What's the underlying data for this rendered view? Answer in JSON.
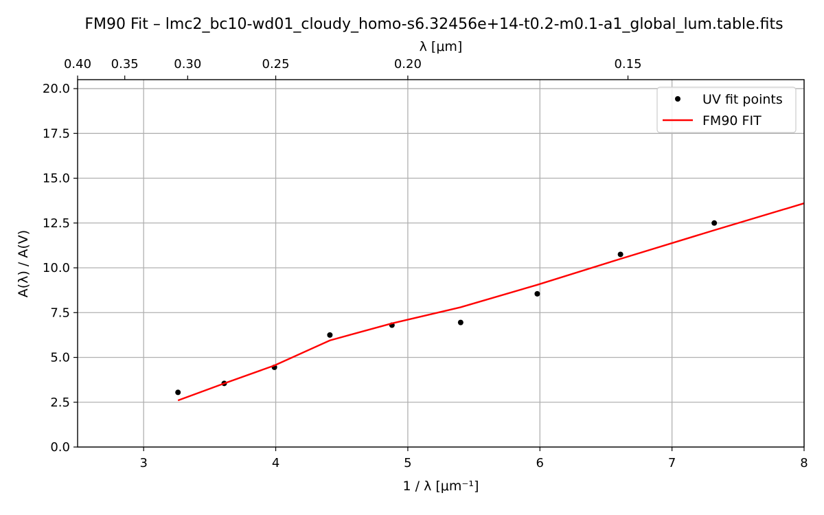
{
  "chart_data": {
    "type": "scatter",
    "title": "FM90 Fit – lmc2_bc10-wd01_cloudy_homo-s6.32456e+14-t0.2-m0.1-a1_global_lum.table.fits",
    "xlabel": "1 / λ [μm⁻¹]",
    "ylabel": "A(λ) / A(V)",
    "top_xlabel": "λ [μm]",
    "xlim": [
      2.5,
      8
    ],
    "ylim": [
      0,
      20.5
    ],
    "x_ticks": [
      3,
      4,
      5,
      6,
      7,
      8
    ],
    "x_tick_labels": [
      "3",
      "4",
      "5",
      "6",
      "7",
      "8"
    ],
    "y_ticks": [
      0,
      2.5,
      5,
      7.5,
      10,
      12.5,
      15,
      17.5,
      20
    ],
    "y_tick_labels": [
      "0.0",
      "2.5",
      "5.0",
      "7.5",
      "10.0",
      "12.5",
      "15.0",
      "17.5",
      "20.0"
    ],
    "top_ticks_um": [
      0.4,
      0.35,
      0.3,
      0.25,
      0.2,
      0.15
    ],
    "top_tick_labels": [
      "0.40",
      "0.35",
      "0.30",
      "0.25",
      "0.20",
      "0.15"
    ],
    "grid": true,
    "legend_position": "top-right",
    "series": [
      {
        "name": "UV fit points",
        "kind": "scatter",
        "color": "#000000",
        "x": [
          3.26,
          3.61,
          3.99,
          4.41,
          4.88,
          5.4,
          5.98,
          6.61,
          7.32
        ],
        "y": [
          3.05,
          3.55,
          4.45,
          6.25,
          6.8,
          6.95,
          8.55,
          10.75,
          12.5
        ]
      },
      {
        "name": "FM90 FIT",
        "kind": "line",
        "color": "#ff0000",
        "x": [
          3.26,
          3.61,
          3.99,
          4.41,
          4.88,
          5.4,
          5.98,
          6.61,
          7.32,
          8.0
        ],
        "y": [
          2.6,
          3.55,
          4.55,
          5.95,
          6.9,
          7.8,
          9.05,
          10.5,
          12.1,
          13.6
        ]
      }
    ]
  }
}
